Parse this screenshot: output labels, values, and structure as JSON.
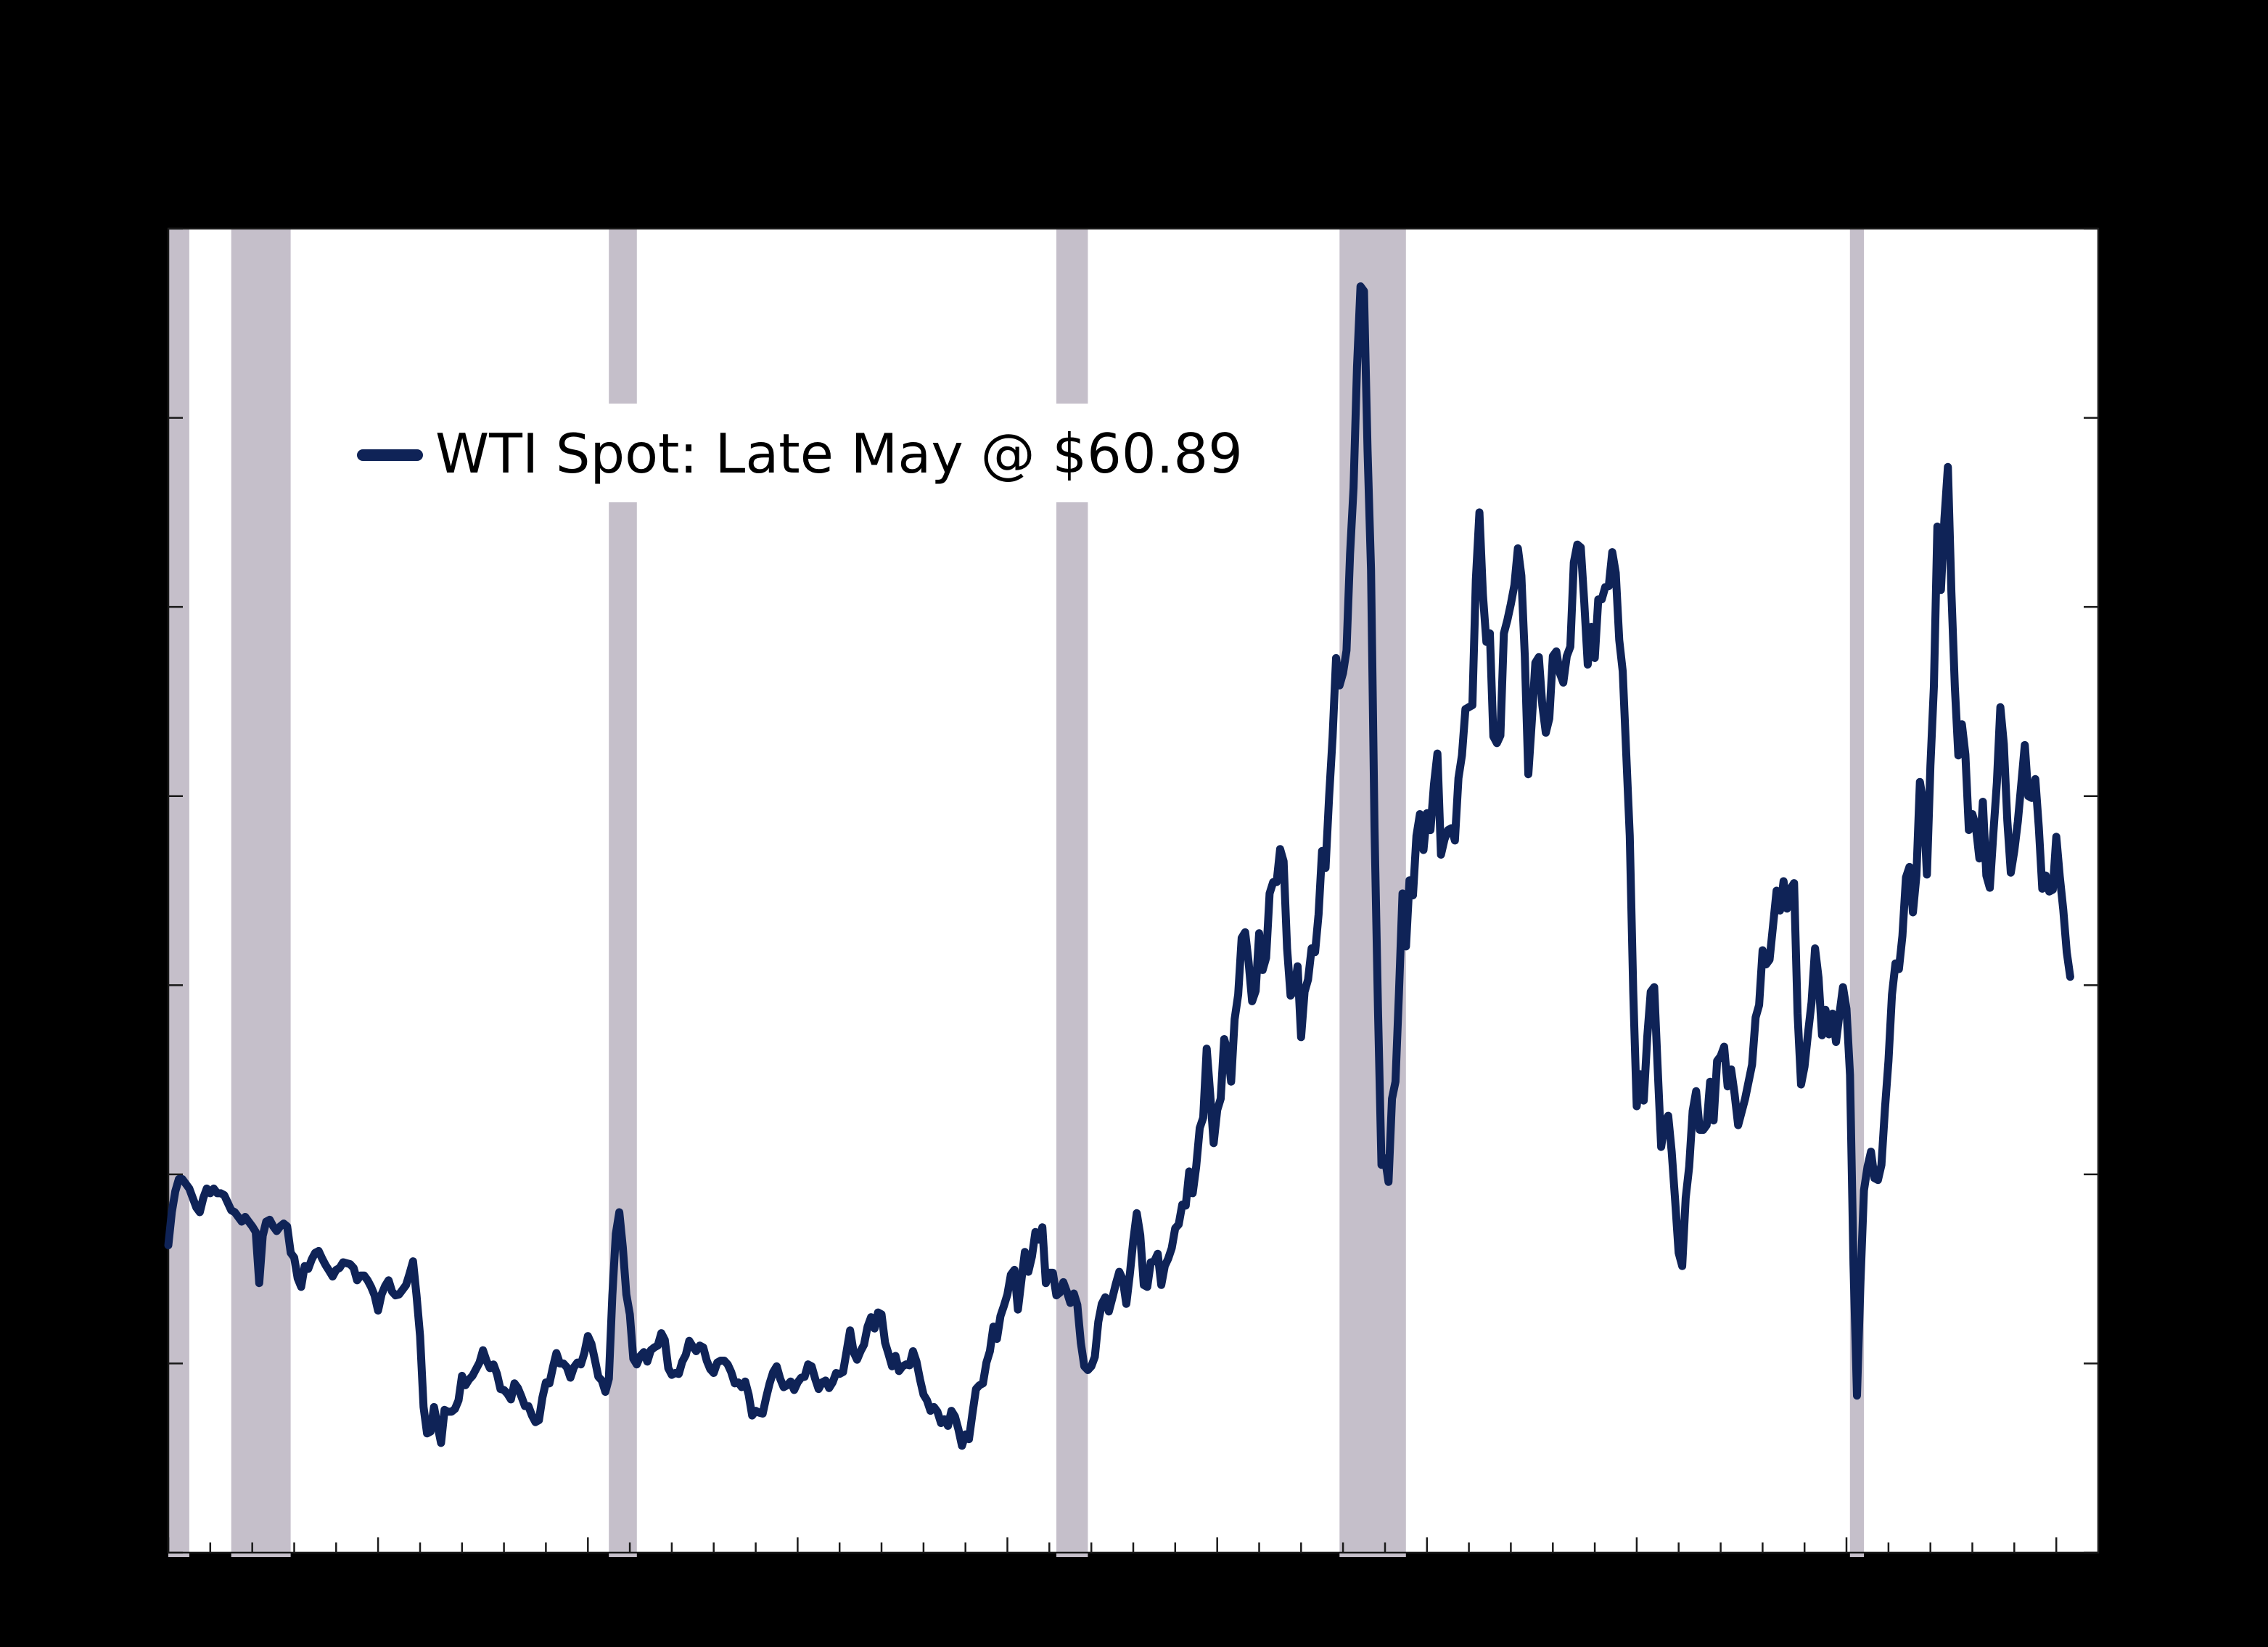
{
  "style": {
    "figure_background": "#000000",
    "plot_background": "#ffffff",
    "line_color": "#0f2357",
    "band_color": "#c5bfca",
    "tick_color": "#1a1a1a",
    "legend_text_color": "#000000",
    "legend_box_color": "#ffffff"
  },
  "legend": {
    "label": "WTI Spot: Late May @ $60.89"
  },
  "chart_data": {
    "type": "line",
    "title": "",
    "legend_label": "WTI Spot: Late May @ $60.89",
    "series_name": "WTI Spot",
    "unit": "USD per barrel",
    "frequency": "monthly",
    "x_axis": {
      "start_year": 1980,
      "end_year": 2026,
      "minor_tick_every_years": 1,
      "major_tick_years": [
        1980,
        1985,
        1990,
        1995,
        2000,
        2005,
        2010,
        2015,
        2020,
        2025
      ],
      "tick_labels_visible": false
    },
    "y_axis": {
      "min": 0,
      "max": 140,
      "tick_interval": 20,
      "ticks": [
        0,
        20,
        40,
        60,
        80,
        100,
        120,
        140
      ],
      "tick_labels_visible": false
    },
    "grid": false,
    "legend_position": "upper-left-inside",
    "recession_bands_years": [
      [
        1980.0,
        1980.5
      ],
      [
        1981.5,
        1982.917
      ],
      [
        1990.5,
        1991.167
      ],
      [
        2001.167,
        2001.917
      ],
      [
        2007.917,
        2009.5
      ],
      [
        2020.083,
        2020.417
      ]
    ],
    "last_point": {
      "label": "Late May",
      "value": 60.89
    },
    "start_year_month": "1980-01",
    "end_year_month": "2025-05",
    "values": [
      32.5,
      36.0,
      38.2,
      39.5,
      39.5,
      39.0,
      38.5,
      37.5,
      36.5,
      36.0,
      37.5,
      38.5,
      38.0,
      38.5,
      38.0,
      38.0,
      37.8,
      37.0,
      36.2,
      36.0,
      35.5,
      35.0,
      35.5,
      35.0,
      34.5,
      33.9,
      28.5,
      33.5,
      35.0,
      35.2,
      34.5,
      34.0,
      34.5,
      34.8,
      34.5,
      31.7,
      31.2,
      29.0,
      28.1,
      30.3,
      30.0,
      31.0,
      31.7,
      31.9,
      31.1,
      30.4,
      29.8,
      29.2,
      29.9,
      30.1,
      30.7,
      30.6,
      30.5,
      30.1,
      28.8,
      29.3,
      29.3,
      28.8,
      28.1,
      27.2,
      25.6,
      27.3,
      28.2,
      28.8,
      27.6,
      27.2,
      27.3,
      27.8,
      28.3,
      29.5,
      30.8,
      27.2,
      22.9,
      15.4,
      12.6,
      12.8,
      15.4,
      13.4,
      11.6,
      15.1,
      14.9,
      14.9,
      15.2,
      16.1,
      18.7,
      17.7,
      18.3,
      18.7,
      19.4,
      20.1,
      21.4,
      20.3,
      19.5,
      19.9,
      18.9,
      17.3,
      17.2,
      16.8,
      16.2,
      17.9,
      17.4,
      16.5,
      15.5,
      15.5,
      14.5,
      13.8,
      14.0,
      16.4,
      18.0,
      17.9,
      19.6,
      21.1,
      20.0,
      20.0,
      19.6,
      18.5,
      19.6,
      20.1,
      19.9,
      21.1,
      22.9,
      22.1,
      20.4,
      18.6,
      18.2,
      17.0,
      18.4,
      27.2,
      33.7,
      36.0,
      32.3,
      27.3,
      25.2,
      20.5,
      19.9,
      20.8,
      21.2,
      20.2,
      21.4,
      21.7,
      21.9,
      23.2,
      22.5,
      19.5,
      18.8,
      19.0,
      18.9,
      20.2,
      20.9,
      22.4,
      21.8,
      21.3,
      21.9,
      21.7,
      20.3,
      19.4,
      19.0,
      20.1,
      20.3,
      20.3,
      19.9,
      19.1,
      17.9,
      18.0,
      17.5,
      18.1,
      16.7,
      14.5,
      15.0,
      14.8,
      14.7,
      16.4,
      17.9,
      19.1,
      19.7,
      18.4,
      17.5,
      17.7,
      18.1,
      17.2,
      18.0,
      18.5,
      18.6,
      19.9,
      19.7,
      18.4,
      17.3,
      18.0,
      18.2,
      17.4,
      18.0,
      19.0,
      18.9,
      19.1,
      21.3,
      23.5,
      21.2,
      20.4,
      21.3,
      22.0,
      23.9,
      24.9,
      23.7,
      25.4,
      25.2,
      22.2,
      21.0,
      19.7,
      20.8,
      19.2,
      19.7,
      19.9,
      19.8,
      21.3,
      20.2,
      18.3,
      16.7,
      16.1,
      15.0,
      15.4,
      14.9,
      13.7,
      14.1,
      13.4,
      15.0,
      14.4,
      13.0,
      11.3,
      12.5,
      12.0,
      14.7,
      17.3,
      17.7,
      17.9,
      20.1,
      21.3,
      23.9,
      22.6,
      25.0,
      26.1,
      27.3,
      29.4,
      29.9,
      25.7,
      28.8,
      31.8,
      29.7,
      31.3,
      33.9,
      33.1,
      34.4,
      28.5,
      29.6,
      29.6,
      27.2,
      27.5,
      28.6,
      27.6,
      26.4,
      27.4,
      26.2,
      22.2,
      19.7,
      19.3,
      19.7,
      20.7,
      24.4,
      26.3,
      27.0,
      25.5,
      26.9,
      28.4,
      29.7,
      28.9,
      26.3,
      29.4,
      33.0,
      35.9,
      33.6,
      28.3,
      28.1,
      30.7,
      30.8,
      31.6,
      28.3,
      30.3,
      31.1,
      32.2,
      34.3,
      34.7,
      36.8,
      36.7,
      40.3,
      38.0,
      40.8,
      44.9,
      46.0,
      53.3,
      48.5,
      43.3,
      46.8,
      48.0,
      54.3,
      53.0,
      49.8,
      56.4,
      59.0,
      65.0,
      65.6,
      62.4,
      58.3,
      59.4,
      65.5,
      61.6,
      62.9,
      69.7,
      70.9,
      70.9,
      74.4,
      73.1,
      63.9,
      58.9,
      59.4,
      62.0,
      54.5,
      59.3,
      60.6,
      63.9,
      63.5,
      67.5,
      74.2,
      72.4,
      79.9,
      86.2,
      94.6,
      91.7,
      93.0,
      95.4,
      105.6,
      112.6,
      125.4,
      133.9,
      133.4,
      116.6,
      103.9,
      76.7,
      57.4,
      41.0,
      41.7,
      39.2,
      48.0,
      49.8,
      59.2,
      69.7,
      64.1,
      71.1,
      69.5,
      75.8,
      78.1,
      74.3,
      78.2,
      76.4,
      81.2,
      84.5,
      73.8,
      75.4,
      76.4,
      76.6,
      75.3,
      81.9,
      84.3,
      89.2,
      89.4,
      89.6,
      102.9,
      110.0,
      101.3,
      96.3,
      97.2,
      86.3,
      85.6,
      86.4,
      97.2,
      98.6,
      100.3,
      102.3,
      106.2,
      103.3,
      94.7,
      82.3,
      87.9,
      94.1,
      94.7,
      89.6,
      86.7,
      88.2,
      94.8,
      95.3,
      93.0,
      92.0,
      94.8,
      95.8,
      104.7,
      106.6,
      106.3,
      100.5,
      93.9,
      97.9,
      94.6,
      100.8,
      100.8,
      102.1,
      102.2,
      105.8,
      103.6,
      96.5,
      93.2,
      84.4,
      75.8,
      59.3,
      47.2,
      50.6,
      47.8,
      54.5,
      59.3,
      59.8,
      51.2,
      42.9,
      45.5,
      46.2,
      42.4,
      37.2,
      31.7,
      30.3,
      37.5,
      40.8,
      46.7,
      48.8,
      44.7,
      44.7,
      45.2,
      49.8,
      45.7,
      52.0,
      52.5,
      53.5,
      49.3,
      51.1,
      48.5,
      45.2,
      46.6,
      48.0,
      49.8,
      51.6,
      56.6,
      57.9,
      63.7,
      62.2,
      62.7,
      66.3,
      70.0,
      67.9,
      71.0,
      68.1,
      70.2,
      70.8,
      57.0,
      49.5,
      51.4,
      54.9,
      58.2,
      63.9,
      60.8,
      54.7,
      57.4,
      54.8,
      57.0,
      54.0,
      57.0,
      59.8,
      57.5,
      50.5,
      30.4,
      16.6,
      28.6,
      38.3,
      40.8,
      42.4,
      39.6,
      39.4,
      41.0,
      47.0,
      52.0,
      59.0,
      62.3,
      61.7,
      65.2,
      71.4,
      72.5,
      67.7,
      71.6,
      81.5,
      79.2,
      71.7,
      83.2,
      91.6,
      108.5,
      101.8,
      109.3,
      114.8,
      101.6,
      91.5,
      84.3,
      87.6,
      84.4,
      76.4,
      78.1,
      76.8,
      73.4,
      79.4,
      71.6,
      70.3,
      76.0,
      81.4,
      89.4,
      85.5,
      77.4,
      71.9,
      74.2,
      77.3,
      81.3,
      85.4,
      80.0,
      79.8,
      81.8,
      76.7,
      70.2,
      71.6,
      69.9,
      70.1,
      75.7,
      71.5,
      68.0,
      63.5,
      60.89
    ]
  }
}
